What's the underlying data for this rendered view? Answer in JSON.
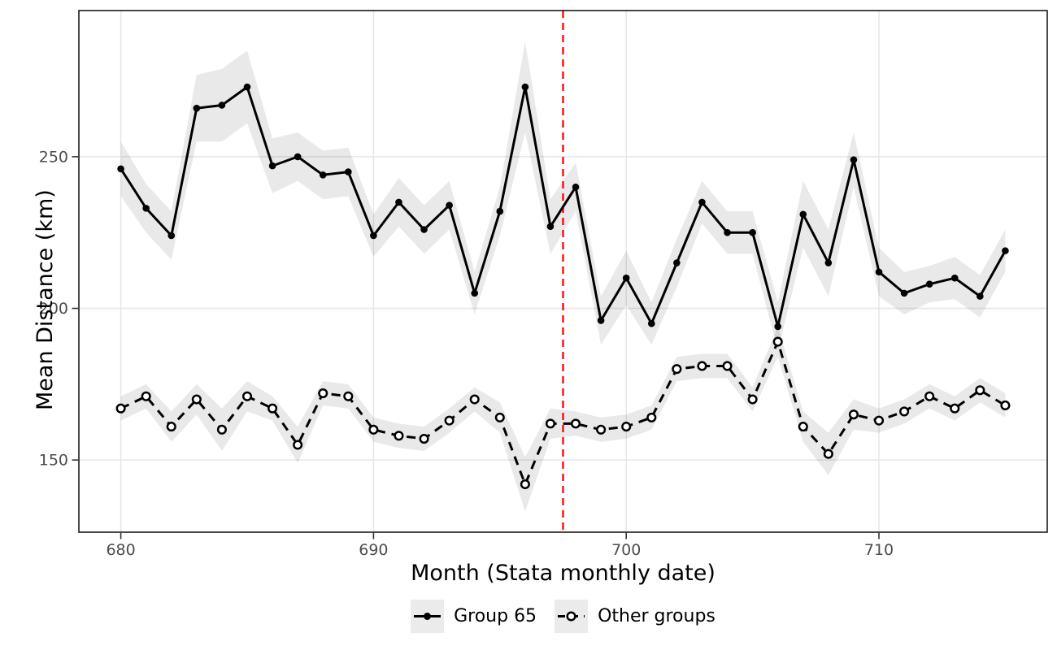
{
  "chart_data": {
    "type": "line",
    "title": "",
    "xlabel": "Month (Stata monthly date)",
    "ylabel": "Mean Distance (km)",
    "x_tick_labels": [
      "680",
      "690",
      "700",
      "710"
    ],
    "x_tick_values": [
      680,
      690,
      700,
      710
    ],
    "y_tick_labels": [
      "150",
      "200",
      "250"
    ],
    "y_tick_values": [
      150,
      200,
      250
    ],
    "xlim": [
      678.34,
      716.66
    ],
    "ylim": [
      126.2,
      298.2
    ],
    "grid": "major-only",
    "legend_position": "bottom-center",
    "vline": {
      "x": 697.5,
      "color": "#FF0000",
      "style": "dashed"
    },
    "x": [
      680,
      681,
      682,
      683,
      684,
      685,
      686,
      687,
      688,
      689,
      690,
      691,
      692,
      693,
      694,
      695,
      696,
      697,
      698,
      699,
      700,
      701,
      702,
      703,
      704,
      705,
      706,
      707,
      708,
      709,
      710,
      711,
      712,
      713,
      714,
      715
    ],
    "series": [
      {
        "name": "Group 65",
        "line_style": "solid",
        "marker": "filled-circle",
        "color": "#000000",
        "values": [
          246,
          233,
          224,
          266,
          267,
          273,
          247,
          250,
          244,
          245,
          224,
          235,
          226,
          234,
          205,
          232,
          273,
          227,
          240,
          196,
          210,
          195,
          215,
          235,
          225,
          225,
          194,
          231,
          215,
          249,
          212,
          205,
          208,
          210,
          204,
          219
        ],
        "ci_halfwidth": [
          9,
          8,
          8,
          11,
          12,
          12,
          9,
          8,
          8,
          8,
          7,
          8,
          8,
          8,
          7,
          8,
          15,
          9,
          8,
          8,
          9,
          7,
          8,
          7,
          7,
          7,
          8,
          11,
          11,
          9,
          8,
          7,
          6,
          7,
          7,
          7
        ]
      },
      {
        "name": "Other groups",
        "line_style": "dashed",
        "marker": "open-circle",
        "color": "#000000",
        "values": [
          167,
          171,
          161,
          170,
          160,
          171,
          167,
          155,
          172,
          171,
          160,
          158,
          157,
          163,
          170,
          164,
          142,
          162,
          162,
          160,
          161,
          164,
          180,
          181,
          181,
          170,
          189,
          161,
          152,
          165,
          163,
          166,
          171,
          167,
          173,
          168
        ],
        "ci_halfwidth": [
          4,
          4,
          5,
          5,
          7,
          5,
          4,
          6,
          4,
          4,
          4,
          4,
          4,
          4,
          4,
          5,
          9,
          5,
          4,
          4,
          4,
          4,
          4,
          4,
          4,
          4,
          5,
          5,
          7,
          5,
          4,
          4,
          4,
          4,
          4,
          4
        ]
      }
    ],
    "band_color": "rgba(0,0,0,0.085)",
    "grid_color": "#E6E6E6",
    "panel_border_color": "#1A1A1A",
    "tick_color": "#333333",
    "tick_label_color": "#4D4D4D"
  },
  "legend": {
    "items": [
      {
        "label": "Group 65"
      },
      {
        "label": "Other groups"
      }
    ]
  }
}
